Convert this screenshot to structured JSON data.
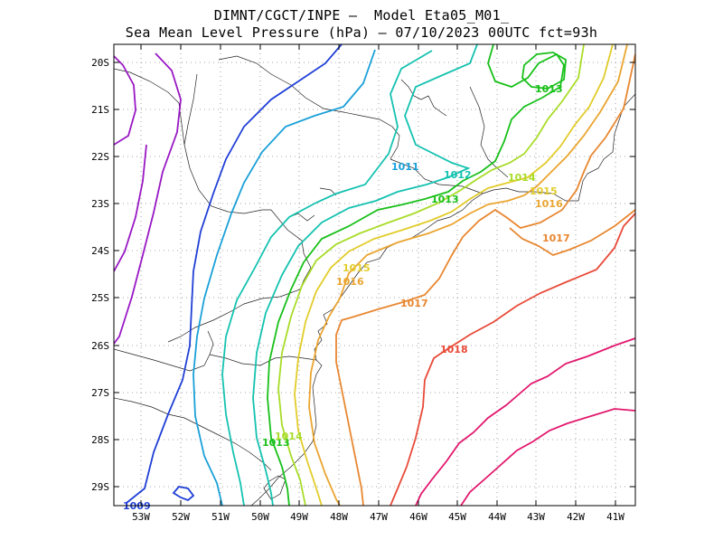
{
  "title": {
    "line1": "DIMNT/CGCT/INPE —  Model Eta05_M01_",
    "line2": "Sea Mean Level Pressure (hPa) — 07/10/2023 00UTC fct=93h"
  },
  "axes": {
    "lat_labels": [
      "20S",
      "21S",
      "22S",
      "23S",
      "24S",
      "25S",
      "26S",
      "27S",
      "28S",
      "29S"
    ],
    "lon_labels": [
      "53W",
      "52W",
      "51W",
      "50W",
      "49W",
      "48W",
      "47W",
      "46W",
      "45W",
      "44W",
      "43W",
      "42W",
      "41W"
    ],
    "lon_range": [
      -53.7,
      -40.5
    ],
    "lat_range": [
      -29.4,
      -19.7
    ]
  },
  "colors": {
    "c1009": "#1f3fd6",
    "c1010": "#2e6ee0",
    "c1011": "#1aa0d8",
    "c1012": "#14c2b0",
    "c1013": "#19c01a",
    "c1014": "#a8dc28",
    "c1015": "#e2cc2a",
    "c1016": "#eaa530",
    "c1017": "#e88730",
    "c1018": "#e84a38",
    "c1019": "#e2186e",
    "c_purple": "#9918c4"
  },
  "contour_labels": [
    {
      "text": "1013",
      "color": "#19c01a"
    },
    {
      "text": "1011",
      "color": "#1aa0d8"
    },
    {
      "text": "1012",
      "color": "#14c2b0"
    },
    {
      "text": "1013",
      "color": "#19c01a"
    },
    {
      "text": "1014",
      "color": "#a8dc28"
    },
    {
      "text": "1015",
      "color": "#e2cc2a"
    },
    {
      "text": "1016",
      "color": "#eaa530"
    },
    {
      "text": "1017",
      "color": "#e88730"
    },
    {
      "text": "1015",
      "color": "#e2cc2a"
    },
    {
      "text": "1016",
      "color": "#eaa530"
    },
    {
      "text": "1017",
      "color": "#e88730"
    },
    {
      "text": "1018",
      "color": "#e84a38"
    },
    {
      "text": "1013",
      "color": "#19c01a"
    },
    {
      "text": "1014",
      "color": "#a8dc28"
    },
    {
      "text": "1009",
      "color": "#1f3fd6"
    }
  ]
}
